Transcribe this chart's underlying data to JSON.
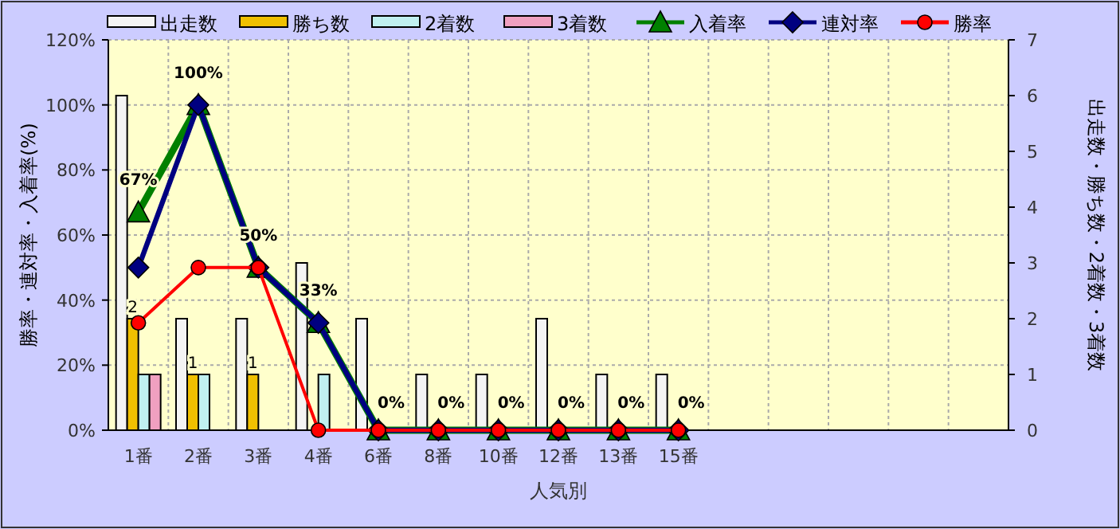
{
  "chart_data": {
    "type": "bar",
    "xlabel": "人気別",
    "ylabel": "勝率・連対率・入着率(%)",
    "y2label": "出走数・勝ち数・2着数・3着数",
    "categories": [
      "1番",
      "2番",
      "3番",
      "4番",
      "6番",
      "8番",
      "10番",
      "12番",
      "13番",
      "15番",
      null,
      null,
      null,
      null,
      null
    ],
    "series": [
      {
        "name": "出走数",
        "axis": "y2",
        "color": "#f4f4f4",
        "values": [
          6,
          2,
          2,
          3,
          2,
          1,
          1,
          2,
          1,
          1,
          null,
          null,
          null,
          null,
          null
        ]
      },
      {
        "name": "勝ち数",
        "axis": "y2",
        "color": "#f0c000",
        "values": [
          2,
          1,
          1,
          0,
          0,
          0,
          0,
          0,
          0,
          0,
          null,
          null,
          null,
          null,
          null
        ],
        "value_labels": [
          "2",
          "1",
          "1",
          null,
          null,
          null,
          null,
          null,
          null,
          null,
          null,
          null,
          null,
          null,
          null
        ]
      },
      {
        "name": "2着数",
        "axis": "y2",
        "color": "#c0f0f0",
        "values": [
          1,
          1,
          0,
          1,
          0,
          0,
          0,
          0,
          0,
          0,
          null,
          null,
          null,
          null,
          null
        ]
      },
      {
        "name": "3着数",
        "axis": "y2",
        "color": "#f0a0c0",
        "values": [
          1,
          0,
          0,
          0,
          0,
          0,
          0,
          0,
          0,
          0,
          null,
          null,
          null,
          null,
          null
        ]
      },
      {
        "name": "入着率",
        "type": "line",
        "marker": "triangle",
        "color": "#008000",
        "values": [
          67,
          100,
          50,
          33,
          0,
          0,
          0,
          0,
          0,
          0,
          null,
          null,
          null,
          null,
          null
        ],
        "value_labels": [
          "67%",
          "100%",
          "50%",
          "33%",
          "0%",
          "0%",
          "0%",
          "0%",
          "0%",
          "0%",
          null,
          null,
          null,
          null,
          null
        ]
      },
      {
        "name": "連対率",
        "type": "line",
        "marker": "diamond",
        "color": "#000080",
        "values": [
          50,
          100,
          50,
          33,
          0,
          0,
          0,
          0,
          0,
          0,
          null,
          null,
          null,
          null,
          null
        ]
      },
      {
        "name": "勝率",
        "type": "line",
        "marker": "circle",
        "color": "#ff0000",
        "values": [
          33,
          50,
          50,
          0,
          0,
          0,
          0,
          0,
          0,
          0,
          null,
          null,
          null,
          null,
          null
        ]
      }
    ],
    "ylim": [
      0,
      120
    ],
    "yticks": [
      {
        "value": 0,
        "label": "0%"
      },
      {
        "value": 20,
        "label": "20%"
      },
      {
        "value": 40,
        "label": "40%"
      },
      {
        "value": 60,
        "label": "60%"
      },
      {
        "value": 80,
        "label": "80%"
      },
      {
        "value": 100,
        "label": "100%"
      },
      {
        "value": 120,
        "label": "120%"
      }
    ],
    "y2lim": [
      0,
      7
    ],
    "y2ticks": [
      0,
      1,
      2,
      3,
      4,
      5,
      6,
      7
    ],
    "grid": true,
    "legend": "top",
    "line_style": "solid"
  }
}
